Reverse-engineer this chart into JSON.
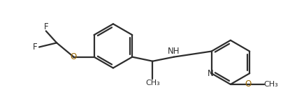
{
  "bg_color": "#ffffff",
  "bond_color": "#2d2d2d",
  "bond_width": 1.6,
  "font_size": 8.5,
  "atom_colors": {
    "F": "#2d2d2d",
    "O": "#996600",
    "N": "#2d2d2d",
    "C": "#2d2d2d"
  },
  "figsize": [
    4.25,
    1.52
  ],
  "dpi": 100,
  "xlim": [
    0,
    10.5
  ],
  "ylim": [
    0,
    3.7
  ]
}
